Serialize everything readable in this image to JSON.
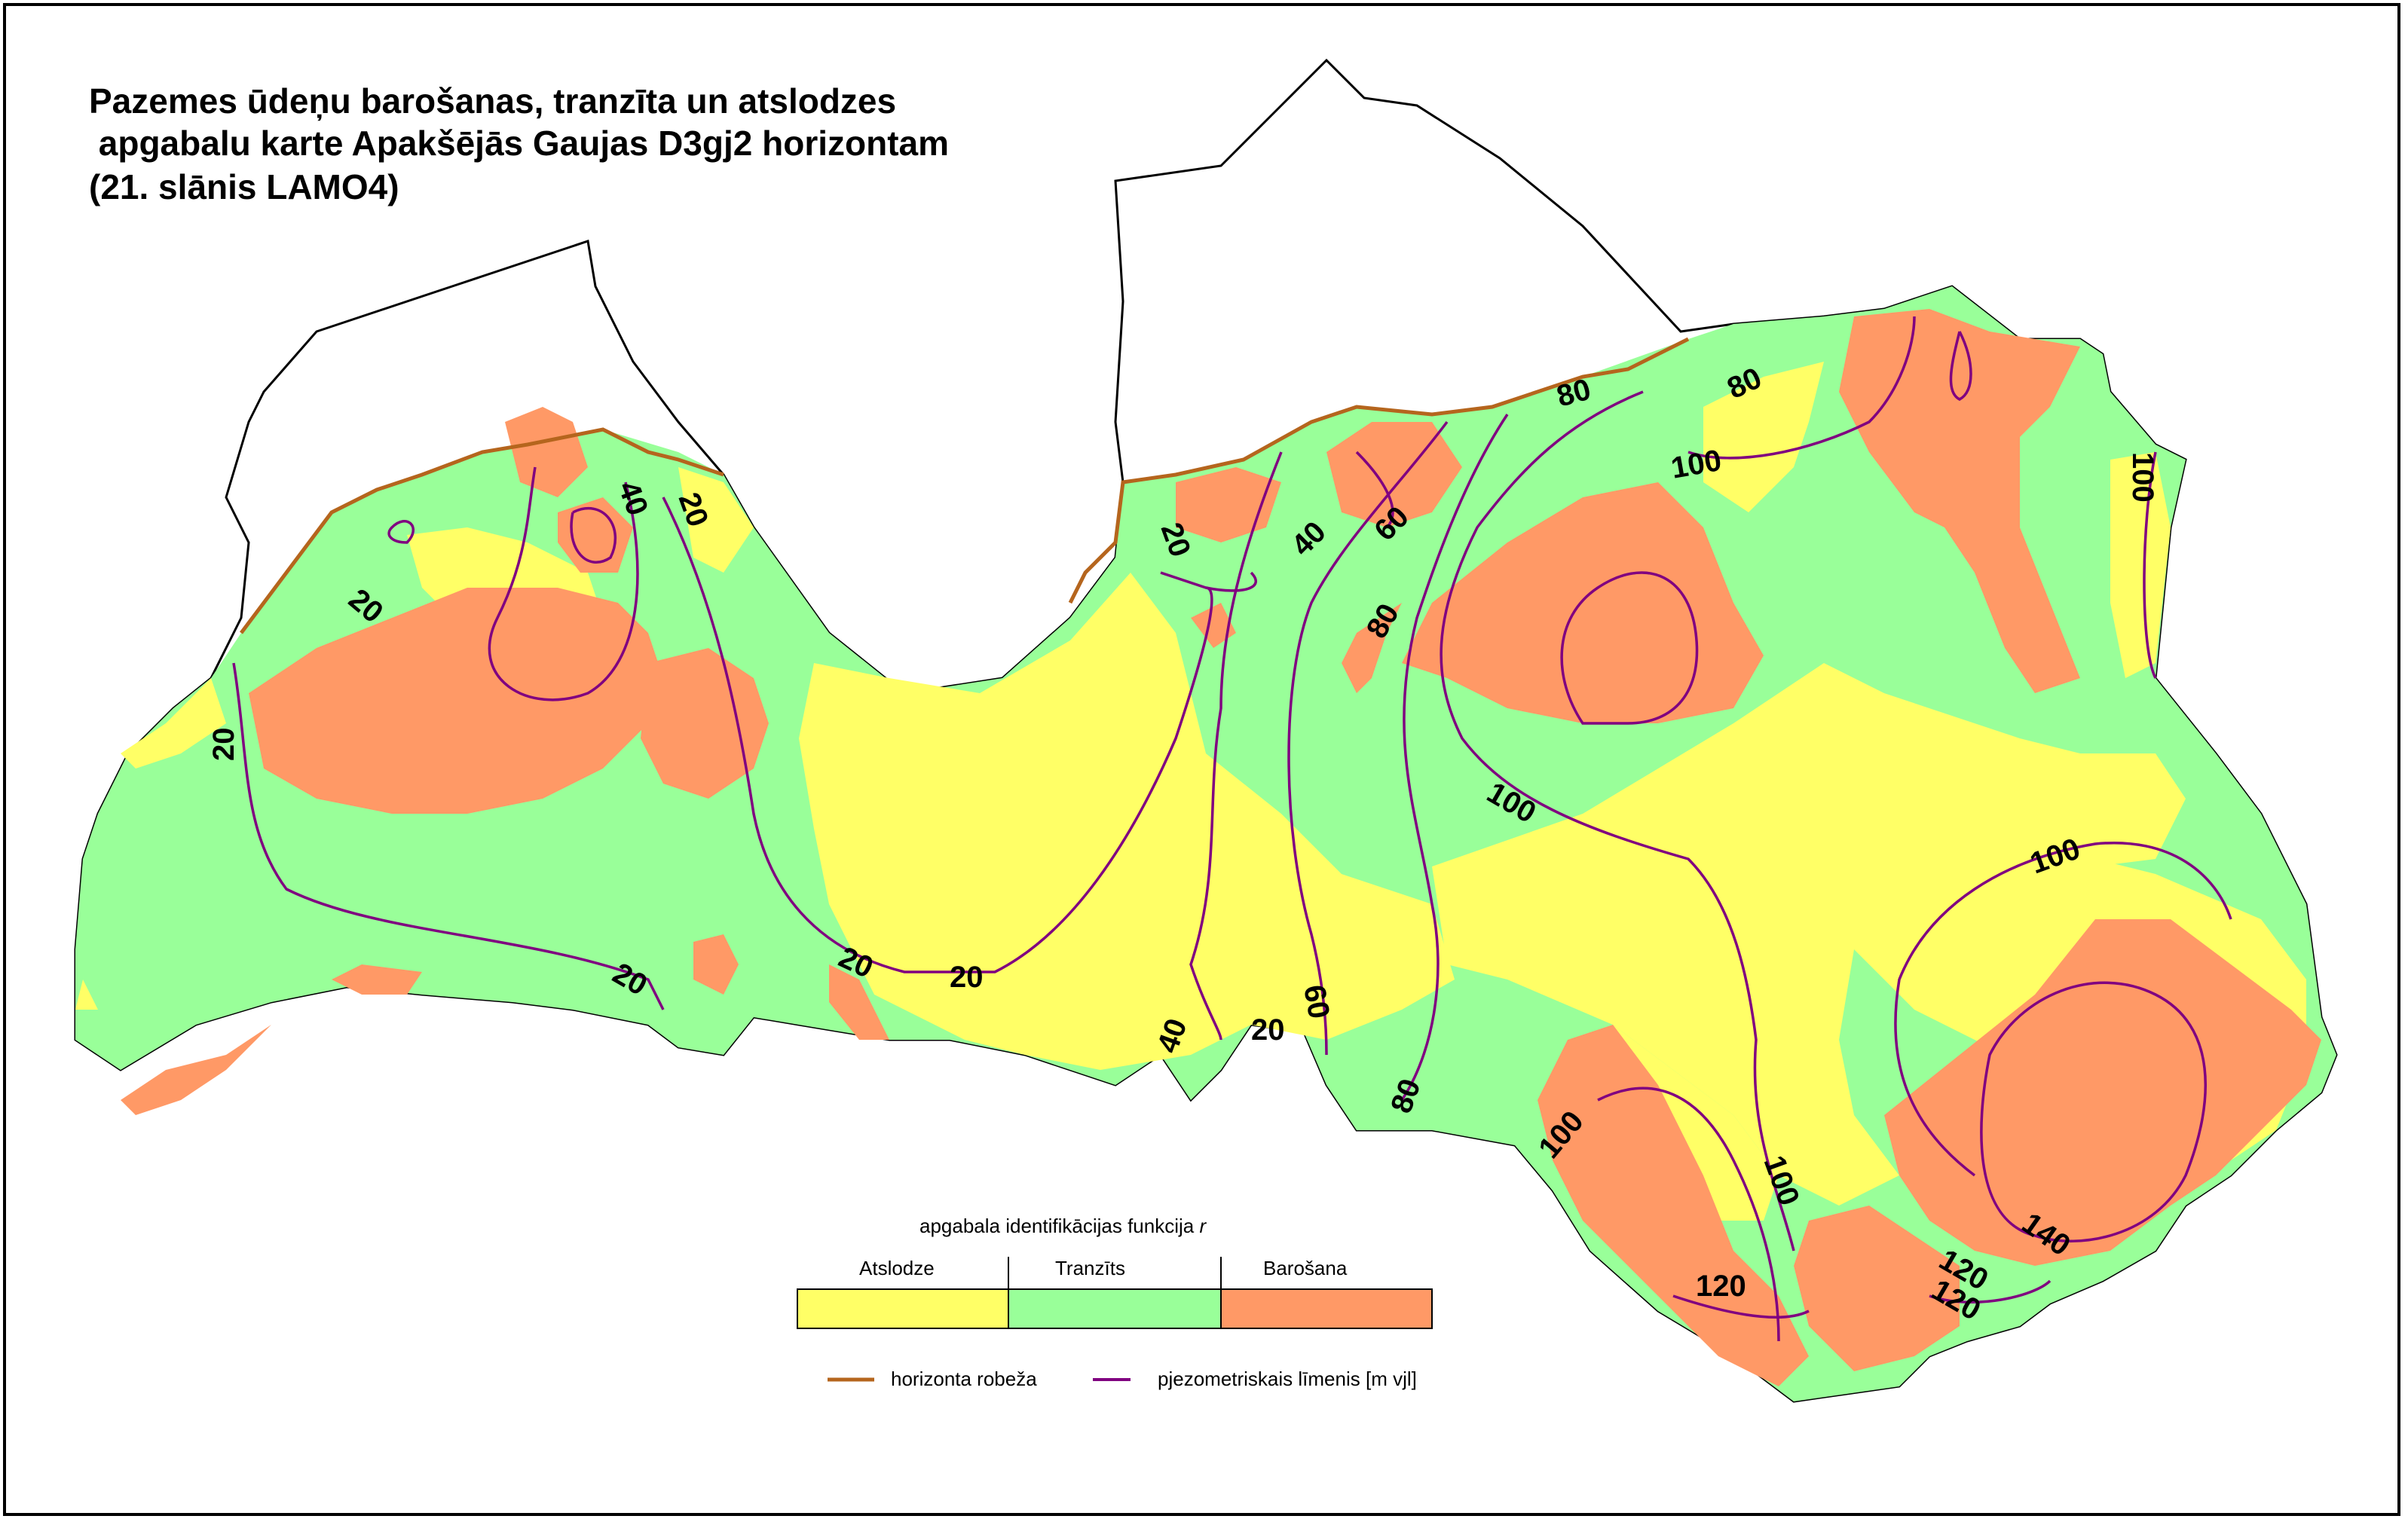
{
  "title": {
    "line1": "Pazemes ūdeņu barošanas, tranzīta un atslodzes",
    "line2": " apgabalu karte Apakšējās Gaujas D3gj2 horizontam",
    "line3": "(21. slānis LAMO4)"
  },
  "zones": [
    {
      "key": "atslodze",
      "label": "Atslodze",
      "color": "#ffff66"
    },
    {
      "key": "tranzits",
      "label": "Tranzīts",
      "color": "#99ff99"
    },
    {
      "key": "barosana",
      "label": "Barošana",
      "color": "#ff9966"
    }
  ],
  "legend": {
    "heading_prefix": "apgabala identifikācijas funkcija ",
    "heading_var": "r",
    "boundary_label": "horizonta robeža",
    "boundary_color": "#b5651d",
    "isoline_label": "pjezometriskais līmenis [m vjl]",
    "isoline_color": "#800080"
  },
  "isolines": [
    "20",
    "20",
    "20",
    "20",
    "20",
    "20",
    "20",
    "20",
    "40",
    "40",
    "40",
    "60",
    "60",
    "80",
    "80",
    "80",
    "80",
    "100",
    "100",
    "100",
    "100",
    "100",
    "100",
    "120",
    "120",
    "120",
    "140"
  ]
}
